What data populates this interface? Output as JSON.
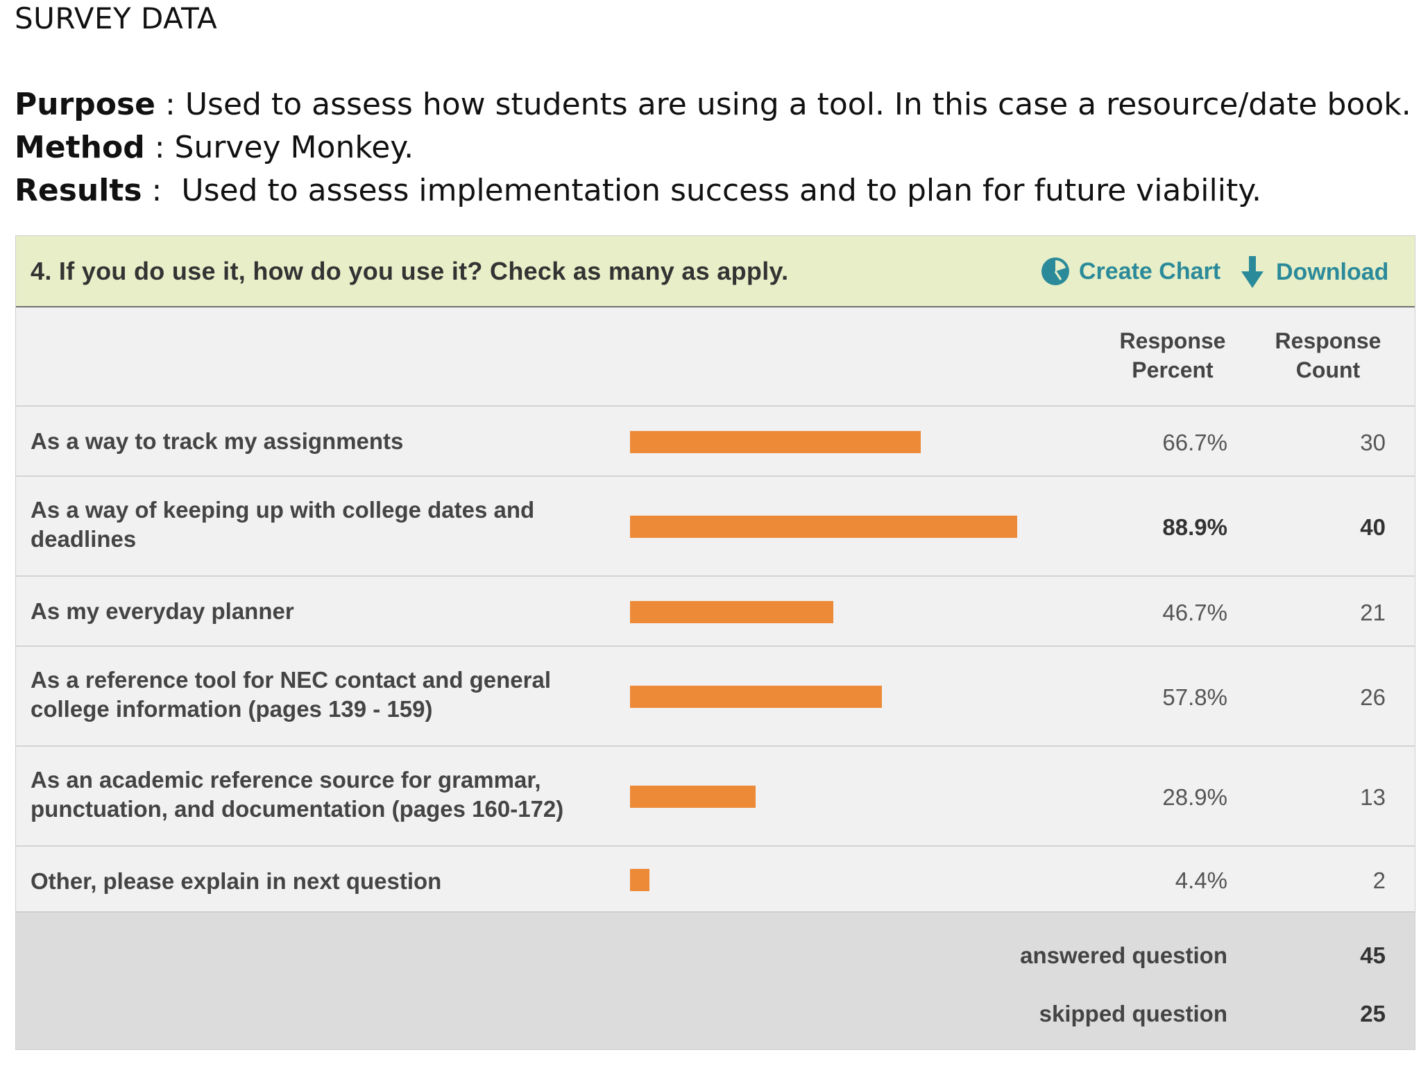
{
  "doc": {
    "title": "SURVEY DATA",
    "purpose_label": "Purpose",
    "purpose_text": " : Used to assess how students are using a tool. In this case a resource/date book.",
    "method_label": "Method",
    "method_text": " : Survey Monkey.",
    "results_label": "Results",
    "results_sep": " :",
    "results_text": "Used to assess implementation success and to plan for future viability."
  },
  "survey": {
    "question": "4. If you do use it, how do you use it? Check as many as apply.",
    "actions": {
      "create_chart": "Create Chart",
      "create_chart_icon": "pie-chart-icon",
      "download": "Download",
      "download_icon": "down-arrow-icon",
      "accent_color": "#2b8a9a"
    },
    "columns": {
      "percent_line1": "Response",
      "percent_line2": "Percent",
      "count_line1": "Response",
      "count_line2": "Count"
    },
    "bar_color": "#ec8a38",
    "rows": [
      {
        "label": "As a way to track my assignments",
        "percent_text": "66.7%",
        "percent": 66.7,
        "count": "30"
      },
      {
        "label": "As a way of keeping up with college dates and deadlines",
        "percent_text": "88.9%",
        "percent": 88.9,
        "count": "40"
      },
      {
        "label": "As my everyday planner",
        "percent_text": "46.7%",
        "percent": 46.7,
        "count": "21"
      },
      {
        "label": "As a reference tool for NEC contact and general college information (pages 139 - 159)",
        "percent_text": "57.8%",
        "percent": 57.8,
        "count": "26"
      },
      {
        "label": "As an academic reference source for grammar, punctuation, and documentation (pages 160-172)",
        "percent_text": "28.9%",
        "percent": 28.9,
        "count": "13"
      },
      {
        "label": "Other, please explain in next question",
        "percent_text": "4.4%",
        "percent": 4.4,
        "count": "2"
      }
    ],
    "footer": {
      "answered_label": "answered question",
      "answered_value": "45",
      "skipped_label": "skipped question",
      "skipped_value": "25"
    }
  }
}
